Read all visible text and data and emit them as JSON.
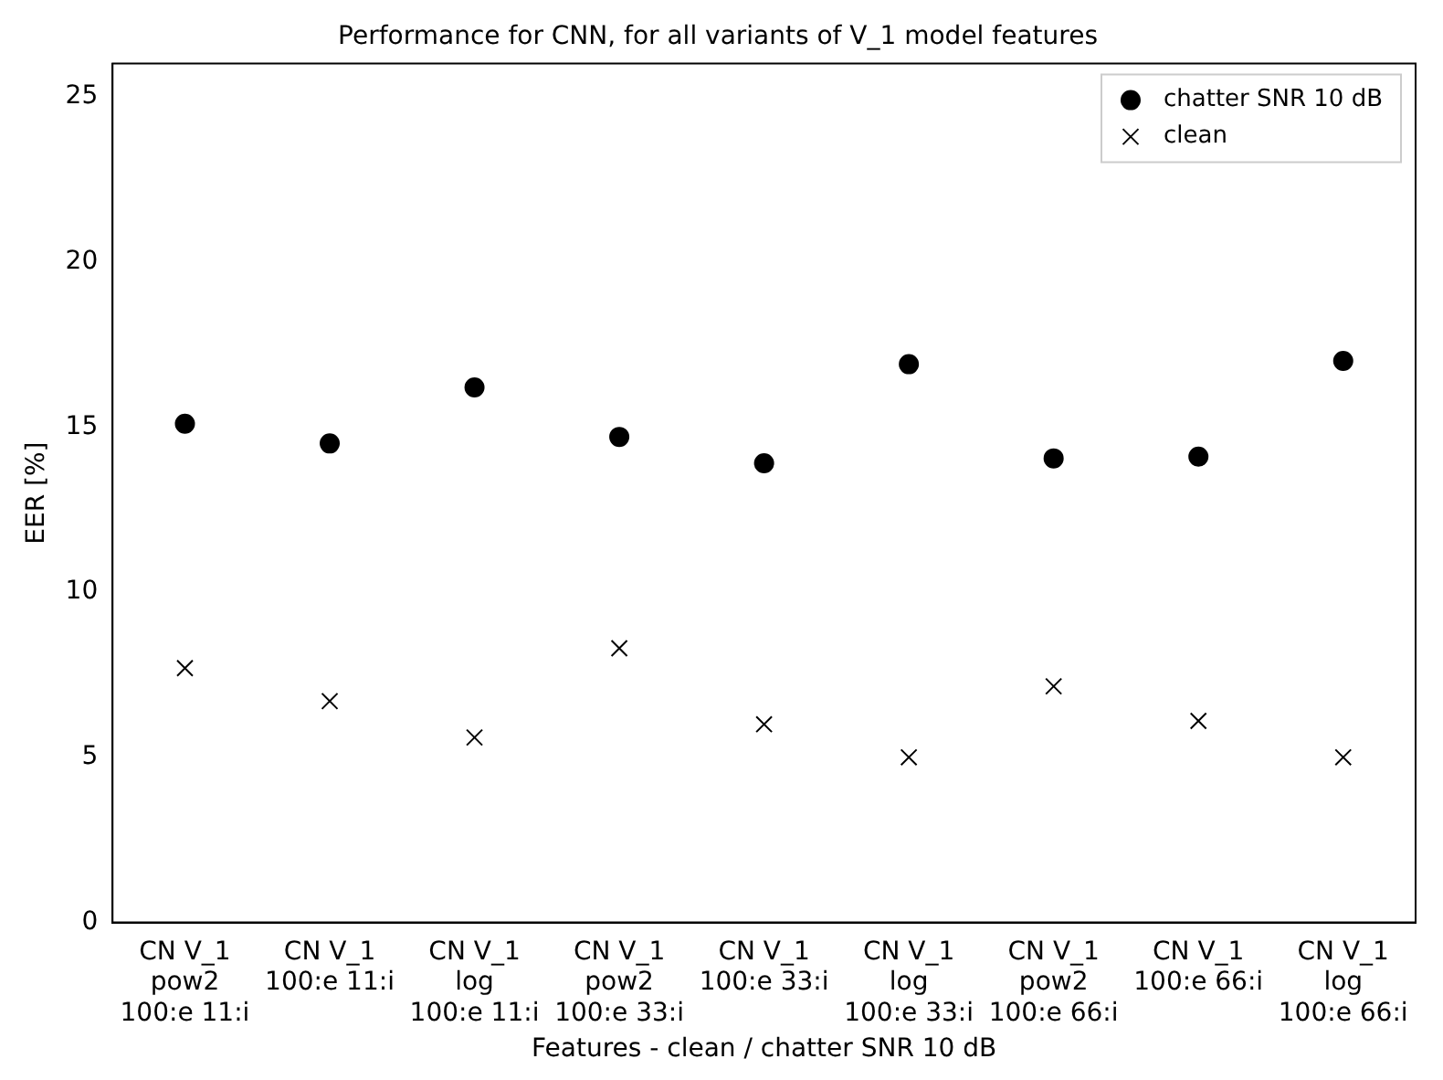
{
  "chart_data": {
    "type": "scatter",
    "title": "Performance for CNN, for all variants of V_1 model features",
    "xlabel": "Features - clean / chatter SNR 10 dB",
    "ylabel": "EER [%]",
    "categories": [
      "CN V_1\npow2\n100:e 11:i",
      "CN V_1\n100:e 11:i",
      "CN V_1\nlog\n100:e 11:i",
      "CN V_1\npow2\n100:e 33:i",
      "CN V_1\n100:e 33:i",
      "CN V_1\nlog\n100:e 33:i",
      "CN V_1\npow2\n100:e 66:i",
      "CN V_1\n100:e 66:i",
      "CN V_1\nlog\n100:e 66:i"
    ],
    "series": [
      {
        "name": "chatter SNR 10 dB",
        "color": "#000000",
        "marker": "circle",
        "values": [
          15.1,
          14.5,
          16.2,
          14.7,
          13.9,
          16.9,
          14.05,
          14.1,
          17.0
        ]
      },
      {
        "name": "clean",
        "color": "#000000",
        "marker": "cross",
        "values": [
          7.7,
          6.7,
          5.6,
          8.3,
          6.0,
          5.0,
          7.15,
          6.1,
          5.0
        ]
      }
    ],
    "ylim": [
      0,
      26
    ],
    "yticks": [
      0,
      5,
      10,
      15,
      20,
      25
    ],
    "grid": false,
    "legend": "top right"
  }
}
